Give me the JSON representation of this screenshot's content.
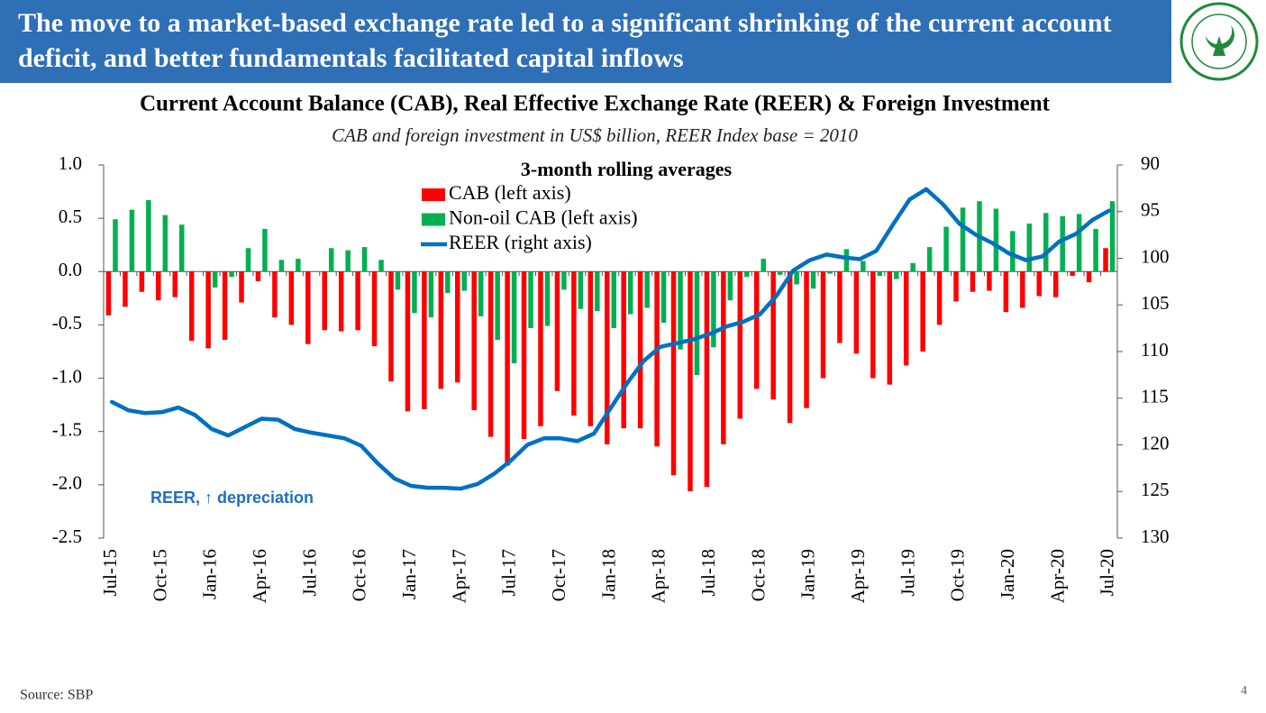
{
  "header": {
    "title": "The move to a market-based exchange rate led to a significant shrinking of the current account deficit, and better fundamentals facilitated capital inflows"
  },
  "chart_data": {
    "type": "bar",
    "title": "Current Account Balance (CAB), Real Effective Exchange Rate (REER) & Foreign Investment",
    "subtitle": "CAB and foreign investment in US$ billion, REER Index base = 2010",
    "annotations": [
      "3-month rolling averages",
      "REER, ↑ depreciation"
    ],
    "categories": [
      "Jul-15",
      null,
      null,
      "Oct-15",
      null,
      null,
      "Jan-16",
      null,
      null,
      "Apr-16",
      null,
      null,
      "Jul-16",
      null,
      null,
      "Oct-16",
      null,
      null,
      "Jan-17",
      null,
      null,
      "Apr-17",
      null,
      null,
      "Jul-17",
      null,
      null,
      "Oct-17",
      null,
      null,
      "Jan-18",
      null,
      null,
      "Apr-18",
      null,
      null,
      "Jul-18",
      null,
      null,
      "Oct-18",
      null,
      null,
      "Jan-19",
      null,
      null,
      "Apr-19",
      null,
      null,
      "Jul-19",
      null,
      null,
      "Oct-19",
      null,
      null,
      "Jan-20",
      null,
      null,
      "Apr-20",
      null,
      null,
      "Jul-20"
    ],
    "series": [
      {
        "name": "CAB (left axis)",
        "color": "#ff0000",
        "values": [
          -0.41,
          -0.33,
          -0.19,
          -0.27,
          -0.24,
          -0.65,
          -0.72,
          -0.64,
          -0.29,
          -0.09,
          -0.43,
          -0.5,
          -0.68,
          -0.55,
          -0.56,
          -0.55,
          -0.7,
          -1.03,
          -1.31,
          -1.29,
          -1.1,
          -1.04,
          -1.3,
          -1.55,
          -1.82,
          -1.57,
          -1.45,
          -1.12,
          -1.35,
          -1.45,
          -1.62,
          -1.47,
          -1.47,
          -1.64,
          -1.91,
          -2.06,
          -2.02,
          -1.62,
          -1.38,
          -1.1,
          -1.2,
          -1.42,
          -1.28,
          -1.0,
          -0.67,
          -0.77,
          -1.0,
          -1.06,
          -0.88,
          -0.75,
          -0.5,
          -0.28,
          -0.19,
          -0.18,
          -0.38,
          -0.34,
          -0.23,
          -0.24,
          -0.04,
          -0.1,
          0.22
        ]
      },
      {
        "name": "Non-oil CAB (left axis)",
        "color": "#00b050",
        "values": [
          0.49,
          0.58,
          0.67,
          0.53,
          0.44,
          0,
          -0.15,
          -0.05,
          0.22,
          0.4,
          0.11,
          0.12,
          0,
          0.22,
          0.2,
          0.23,
          0.11,
          -0.17,
          -0.39,
          -0.43,
          -0.2,
          -0.18,
          -0.42,
          -0.64,
          -0.86,
          -0.53,
          -0.51,
          -0.17,
          -0.35,
          -0.37,
          -0.53,
          -0.4,
          -0.34,
          -0.48,
          -0.73,
          -0.97,
          -0.71,
          -0.27,
          -0.05,
          0.12,
          -0.03,
          -0.12,
          -0.16,
          -0.02,
          0.21,
          0.1,
          -0.04,
          -0.07,
          0.08,
          0.23,
          0.42,
          0.6,
          0.66,
          0.59,
          0.38,
          0.45,
          0.55,
          0.52,
          0.54,
          0.4,
          0.66
        ]
      },
      {
        "name": "REER (right axis)",
        "color": "#0070c0",
        "type": "line",
        "axis": "y2",
        "values": [
          115.4,
          116.3,
          116.6,
          116.5,
          116.0,
          116.8,
          118.3,
          119.0,
          118.1,
          117.2,
          117.3,
          118.3,
          118.7,
          119.0,
          119.3,
          120.1,
          122.0,
          123.6,
          124.4,
          124.6,
          124.6,
          124.7,
          124.2,
          123.1,
          121.7,
          120.0,
          119.3,
          119.3,
          119.6,
          118.8,
          116.1,
          113.4,
          111.0,
          109.5,
          109.1,
          108.7,
          108.1,
          107.3,
          106.8,
          106.0,
          104.0,
          101.3,
          100.2,
          99.6,
          99.9,
          100.1,
          99.2,
          96.4,
          93.7,
          92.6,
          94.2,
          96.3,
          97.5,
          98.4,
          99.5,
          100.2,
          99.8,
          98.2,
          97.4,
          95.9,
          94.9
        ]
      }
    ],
    "ylim": [
      -2.5,
      1
    ],
    "yticks": [
      {
        "value": 1,
        "label": "1.0"
      },
      0.5,
      {
        "value": 0,
        "label": "0.0"
      },
      -0.5,
      {
        "value": -1,
        "label": "-1.0"
      },
      -1.5,
      {
        "value": -2,
        "label": "-2.0"
      },
      -2.5
    ],
    "y2lim": [
      130,
      90
    ],
    "y2ticks": [
      90,
      95,
      100,
      105,
      110,
      115,
      120,
      125,
      130
    ]
  },
  "footer": {
    "source": "Source: SBP",
    "page_number": "4"
  }
}
